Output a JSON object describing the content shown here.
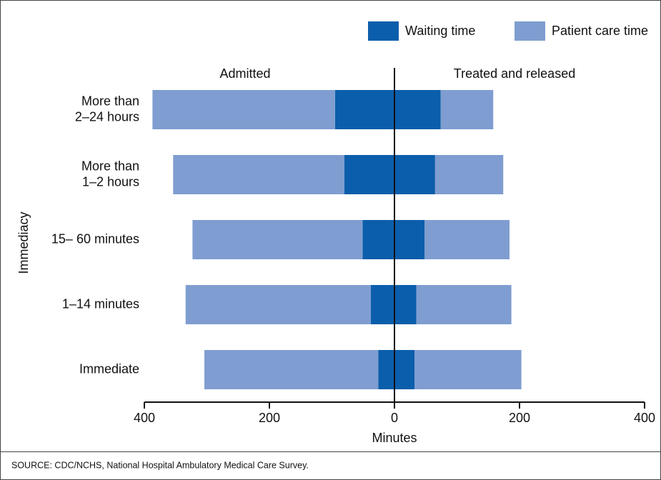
{
  "chart_data": {
    "type": "diverging_stacked_bar",
    "x_label": "Minutes",
    "y_label": "Immediacy",
    "source": "SOURCE: CDC/NCHS, National Hospital Ambulatory Medical Care Survey.",
    "categories": [
      [
        "More than",
        "2–24 hours"
      ],
      [
        "More than",
        "1–2 hours"
      ],
      [
        "15– 60 minutes"
      ],
      [
        "1–14 minutes"
      ],
      [
        "Immediate"
      ]
    ],
    "legend": [
      {
        "name": "Waiting time",
        "color": "#0b5eab"
      },
      {
        "name": "Patient care time",
        "color": "#7f9dd0"
      }
    ],
    "groups": [
      {
        "name": "Admitted",
        "series": [
          {
            "values": [
              -95,
              -80,
              -51,
              -38,
              -26
            ]
          },
          {
            "values": [
              -292,
              -274,
              -272,
              -296,
              -278
            ]
          }
        ]
      },
      {
        "name": "Treated and released",
        "series": [
          {
            "values": [
              74,
              65,
              48,
              35,
              32
            ]
          },
          {
            "values": [
              84,
              109,
              136,
              152,
              171
            ]
          }
        ]
      }
    ],
    "xlim": [
      -400,
      400
    ],
    "xticks": [
      {
        "value": -400,
        "label": "400"
      },
      {
        "value": -200,
        "label": "200"
      },
      0,
      200,
      400
    ]
  }
}
